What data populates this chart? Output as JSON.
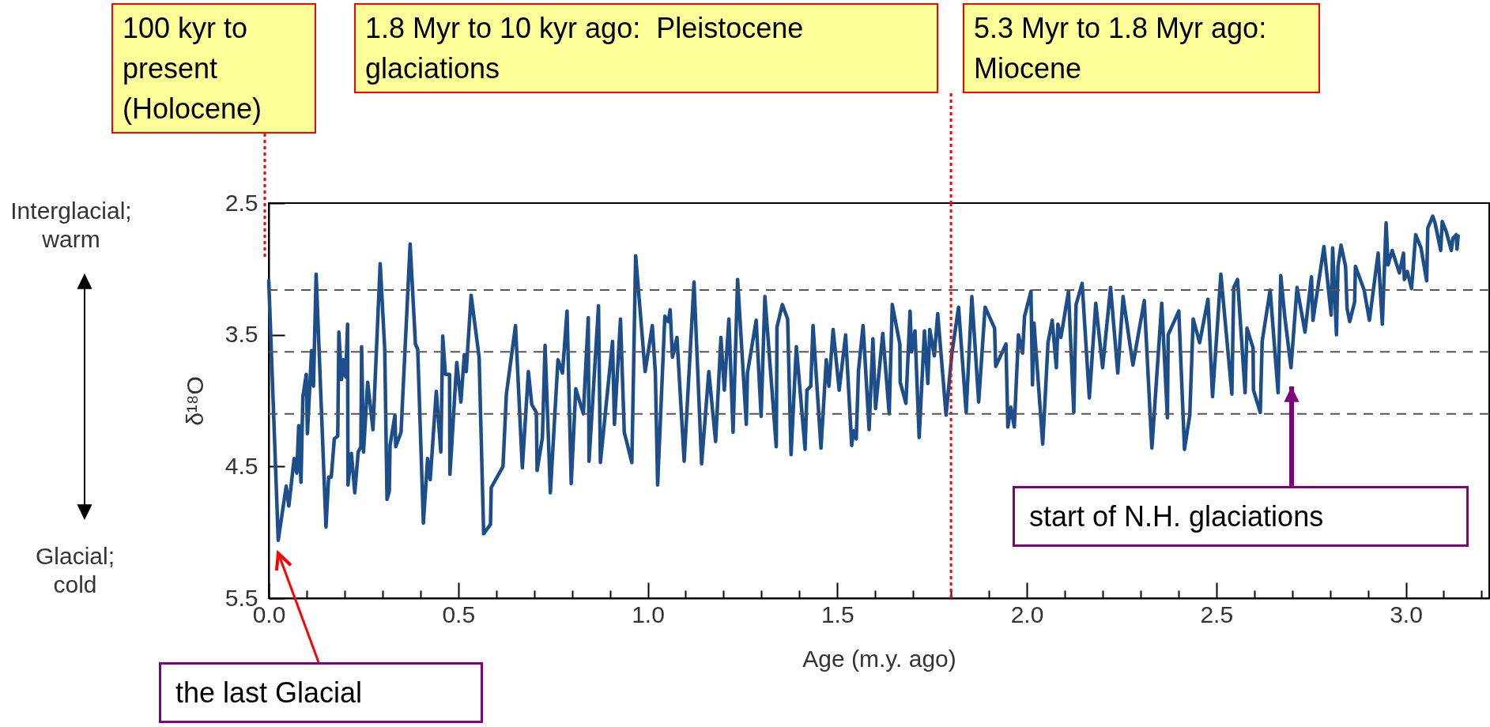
{
  "chart_data": {
    "type": "line",
    "xlabel": "Age (m.y. ago)",
    "ylabel": "δ¹⁸O",
    "xlim": [
      0,
      3.22
    ],
    "ylim": [
      5.5,
      2.5
    ],
    "xticks": [
      {
        "value": 0,
        "label": "0.0"
      },
      {
        "value": 0.1,
        "label": null
      },
      {
        "value": 0.2,
        "label": null
      },
      {
        "value": 0.3,
        "label": null
      },
      {
        "value": 0.4,
        "label": null
      },
      0.5,
      {
        "value": 0.6,
        "label": null
      },
      {
        "value": 0.7,
        "label": null
      },
      {
        "value": 0.8,
        "label": null
      },
      {
        "value": 0.9,
        "label": null
      },
      {
        "value": 1,
        "label": "1.0"
      },
      {
        "value": 1.1,
        "label": null
      },
      {
        "value": 1.2,
        "label": null
      },
      {
        "value": 1.3,
        "label": null
      },
      {
        "value": 1.4,
        "label": null
      },
      1.5,
      {
        "value": 1.6,
        "label": null
      },
      {
        "value": 1.7,
        "label": null
      },
      {
        "value": 1.8,
        "label": null
      },
      {
        "value": 1.9,
        "label": null
      },
      {
        "value": 2,
        "label": "2.0"
      },
      {
        "value": 2.1,
        "label": null
      },
      {
        "value": 2.2,
        "label": null
      },
      {
        "value": 2.3,
        "label": null
      },
      {
        "value": 2.4,
        "label": null
      },
      2.5,
      {
        "value": 2.6,
        "label": null
      },
      {
        "value": 2.7,
        "label": null
      },
      {
        "value": 2.8,
        "label": null
      },
      {
        "value": 2.9,
        "label": null
      },
      {
        "value": 3,
        "label": "3.0"
      },
      {
        "value": 3.1,
        "label": null
      },
      {
        "value": 3.2,
        "label": null
      }
    ],
    "yticks": [
      2.5,
      3.5,
      4.5,
      5.5
    ],
    "x": [
      0,
      0.025,
      0.046,
      0.053,
      0.067,
      0.074,
      0.079,
      0.085,
      0.09,
      0.099,
      0.102,
      0.113,
      0.118,
      0.125,
      0.151,
      0.158,
      0.165,
      0.173,
      0.182,
      0.185,
      0.192,
      0.197,
      0.203,
      0.208,
      0.209,
      0.218,
      0.227,
      0.236,
      0.243,
      0.245,
      0.25,
      0.261,
      0.275,
      0.294,
      0.306,
      0.312,
      0.318,
      0.32,
      0.333,
      0.335,
      0.349,
      0.373,
      0.387,
      0.393,
      0.408,
      0.419,
      0.426,
      0.442,
      0.454,
      0.459,
      0.466,
      0.477,
      0.478,
      0.496,
      0.507,
      0.516,
      0.521,
      0.534,
      0.555,
      0.567,
      0.585,
      0.587,
      0.618,
      0.627,
      0.651,
      0.669,
      0.685,
      0.694,
      0.706,
      0.708,
      0.722,
      0.729,
      0.743,
      0.763,
      0.775,
      0.787,
      0.798,
      0.81,
      0.83,
      0.843,
      0.845,
      0.87,
      0.875,
      0.907,
      0.912,
      0.928,
      0.938,
      0.958,
      0.968,
      0.993,
      1.012,
      1.02,
      1.026,
      1.045,
      1.054,
      1.059,
      1.065,
      1.077,
      1.096,
      1.122,
      1.142,
      1.161,
      1.179,
      1.193,
      1.202,
      1.214,
      1.225,
      1.237,
      1.26,
      1.263,
      1.286,
      1.299,
      1.309,
      1.339,
      1.341,
      1.355,
      1.369,
      1.378,
      1.392,
      1.415,
      1.42,
      1.43,
      1.436,
      1.457,
      1.471,
      1.478,
      1.489,
      1.505,
      1.522,
      1.538,
      1.543,
      1.55,
      1.556,
      1.568,
      1.584,
      1.594,
      1.601,
      1.62,
      1.637,
      1.645,
      1.665,
      1.666,
      1.681,
      1.692,
      1.696,
      1.705,
      1.716,
      1.73,
      1.739,
      1.744,
      1.756,
      1.765,
      1.787,
      1.802,
      1.82,
      1.84,
      1.855,
      1.873,
      1.89,
      1.915,
      1.918,
      1.945,
      1.95,
      1.958,
      1.967,
      1.978,
      1.989,
      1.994,
      2.011,
      2.015,
      2.019,
      2.042,
      2.056,
      2.067,
      2.078,
      2.082,
      2.09,
      2.11,
      2.124,
      2.13,
      2.146,
      2.165,
      2.182,
      2.2,
      2.221,
      2.24,
      2.254,
      2.28,
      2.31,
      2.33,
      2.356,
      2.371,
      2.373,
      2.401,
      2.416,
      2.43,
      2.439,
      2.456,
      2.478,
      2.49,
      2.512,
      2.541,
      2.546,
      2.556,
      2.576,
      2.581,
      2.597,
      2.598,
      2.616,
      2.621,
      2.642,
      2.663,
      2.67,
      2.681,
      2.697,
      2.713,
      2.726,
      2.734,
      2.751,
      2.755,
      2.784,
      2.803,
      2.807,
      2.817,
      2.821,
      2.829,
      2.841,
      2.845,
      2.852,
      2.865,
      2.867,
      2.89,
      2.904,
      2.927,
      2.938,
      2.948,
      2.953,
      2.964,
      2.983,
      2.994,
      2.996,
      3.004,
      3.015,
      3.026,
      3.04,
      3.055,
      3.058,
      3.071,
      3.077,
      3.092,
      3.096,
      3.107,
      3.12,
      3.124,
      3.133,
      3.135,
      3.138
    ],
    "series": [
      {
        "color": "#1d4e89",
        "values": [
          3.09,
          5.06,
          4.65,
          4.8,
          4.44,
          4.55,
          4.19,
          4.62,
          3.97,
          3.8,
          4.25,
          3.62,
          3.89,
          3.04,
          4.96,
          4.58,
          4.58,
          4.29,
          4.27,
          3.48,
          3.84,
          3.69,
          3.82,
          3.42,
          4.64,
          4.4,
          4.7,
          4.39,
          4.35,
          3.59,
          4.39,
          3.86,
          4.22,
          2.96,
          3.61,
          4.75,
          4.69,
          4.34,
          4.11,
          4.35,
          4.24,
          2.81,
          3.57,
          3.61,
          4.93,
          4.44,
          4.6,
          3.93,
          4.39,
          3.51,
          3.8,
          3.8,
          4.56,
          3.71,
          4.01,
          3.65,
          3.78,
          3.2,
          3.67,
          5.01,
          4.94,
          4.66,
          4.5,
          3.95,
          3.43,
          4.51,
          3.78,
          4.03,
          4.09,
          4.53,
          4.28,
          3.58,
          4.7,
          3.69,
          3.79,
          3.32,
          4.63,
          3.91,
          4.1,
          3.37,
          4.46,
          3.28,
          4.47,
          3.55,
          4.18,
          3.38,
          4.24,
          4.47,
          2.9,
          3.78,
          3.43,
          3.79,
          4.64,
          3.36,
          3.4,
          3.31,
          3.67,
          3.52,
          4.46,
          3.1,
          4.48,
          3.78,
          4.31,
          3.52,
          3.92,
          3.38,
          4.24,
          3.08,
          4.18,
          3.79,
          3.39,
          4.12,
          3.21,
          4.35,
          3.44,
          3.27,
          3.38,
          4.41,
          3.59,
          4.37,
          3.92,
          3.89,
          3.43,
          4.36,
          3.69,
          3.89,
          3.46,
          3.92,
          3.5,
          4.34,
          4.23,
          4.29,
          3.77,
          3.43,
          4.22,
          3.53,
          4.06,
          3.49,
          4.1,
          3.27,
          3.57,
          3.86,
          4.02,
          3.32,
          3.63,
          3.47,
          4.28,
          3.47,
          3.87,
          3.46,
          3.66,
          3.34,
          4.11,
          3.65,
          3.29,
          4.09,
          3.21,
          4.01,
          3.29,
          3.45,
          3.74,
          3.57,
          4.2,
          4.05,
          4.2,
          3.5,
          3.64,
          3.36,
          3.17,
          3.88,
          3.41,
          4.33,
          3.56,
          3.39,
          3.75,
          3.42,
          3.52,
          3.17,
          4.09,
          3.27,
          3.11,
          3.98,
          3.26,
          3.75,
          3.14,
          3.79,
          3.21,
          3.73,
          3.24,
          4.36,
          3.26,
          4.13,
          3.5,
          3.32,
          4.37,
          4.11,
          3.38,
          3.56,
          3.23,
          3.97,
          3.04,
          3.95,
          3.14,
          3.08,
          3.94,
          3.45,
          3.6,
          3.92,
          4.09,
          3.55,
          3.16,
          3.94,
          3.05,
          3.37,
          3.75,
          3.14,
          3.35,
          3.48,
          3.06,
          3.39,
          2.83,
          3.35,
          2.84,
          3.5,
          2.98,
          2.82,
          2.98,
          3.3,
          3.4,
          3.25,
          2.98,
          3.16,
          3.39,
          2.88,
          3.42,
          2.65,
          2.97,
          2.86,
          3.03,
          2.88,
          3.08,
          3.02,
          3.15,
          2.74,
          2.84,
          3.09,
          2.69,
          2.6,
          2.65,
          2.86,
          2.64,
          2.72,
          2.86,
          2.77,
          2.74,
          2.85,
          2.75
        ]
      }
    ],
    "ref_lines": [
      {
        "axis": "x",
        "value": 1.8,
        "color": "#ff0000",
        "line_style": "dotted"
      },
      {
        "axis": "y",
        "value": 3.16,
        "color": "#555555",
        "line_style": "dashed"
      },
      {
        "axis": "y",
        "value": 3.63,
        "color": "#555555",
        "line_style": "dashed"
      },
      {
        "axis": "y",
        "value": 4.1,
        "color": "#555555",
        "line_style": "dashed"
      }
    ],
    "annotations": [
      "100 kyr to present (Holocene)",
      "1.8 Myr to 10 kyr ago:  Pleistocene glaciations",
      "5.3 Myr to 1.8 Myr ago: Miocene",
      "Interglacial; warm",
      "Glacial; cold",
      "the last Glacial",
      "start of N.H. glaciations"
    ]
  }
}
